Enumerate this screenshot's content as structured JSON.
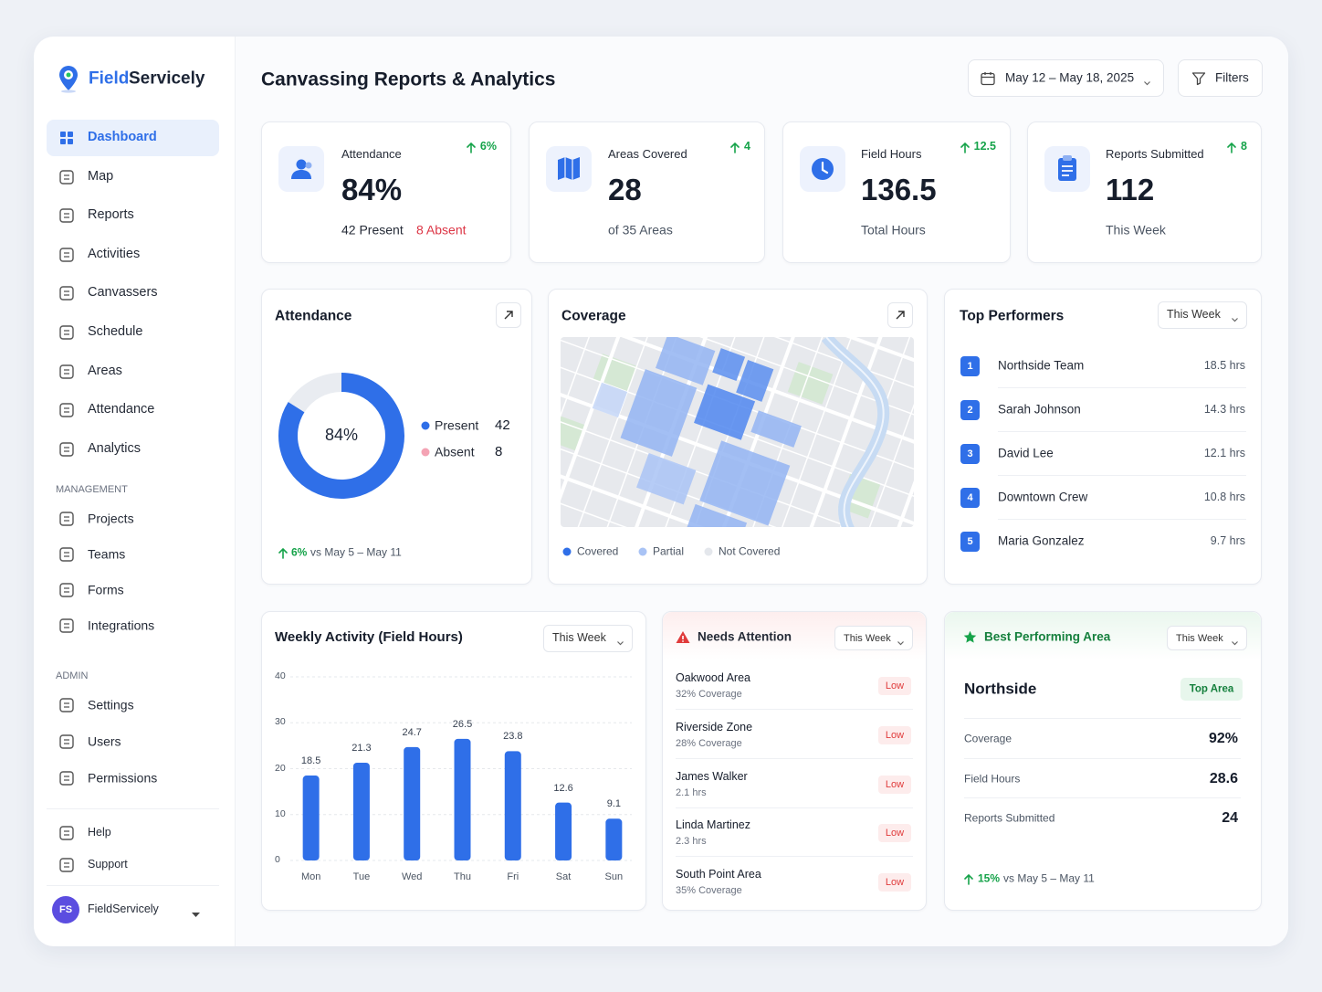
{
  "brand": {
    "first": "Field",
    "second": "Servicely"
  },
  "sidebar": {
    "main": [
      "Dashboard",
      "Map",
      "Reports",
      "Activities",
      "Canvassers",
      "Schedule",
      "Areas",
      "Attendance",
      "Analytics"
    ],
    "management_heading": "MANAGEMENT",
    "management": [
      "Projects",
      "Teams",
      "Forms",
      "Integrations"
    ],
    "admin_heading": "ADMIN",
    "admin": [
      "Settings",
      "Users",
      "Permissions"
    ],
    "support": [
      "Help",
      "Support"
    ],
    "user": {
      "initials": "FS",
      "name": "FieldServicely"
    }
  },
  "header": {
    "title": "Canvassing Reports & Analytics",
    "date_range": "May 12 – May 18, 2025",
    "filters": "Filters"
  },
  "kpis": [
    {
      "label": "Attendance",
      "change": "6%",
      "value": "84%",
      "detail": "42 Present",
      "detail_alert": "8 Absent"
    },
    {
      "label": "Areas Covered",
      "change": "4",
      "value": "28",
      "detail": "of 35 Areas"
    },
    {
      "label": "Field Hours",
      "change": "12.5",
      "value": "136.5",
      "detail": "Total Hours"
    },
    {
      "label": "Reports Submitted",
      "change": "8",
      "value": "112",
      "detail": "This Week"
    }
  ],
  "chart_data": [
    {
      "type": "donut",
      "title": "Attendance",
      "center_label": "84%",
      "categories": [
        "Present",
        "Absent"
      ],
      "values": [
        42,
        8
      ],
      "colors": [
        "#2f6fe8",
        "#e9ecf1"
      ],
      "legend_colors": [
        "#2f6fe8",
        "#f4a3b4"
      ],
      "change": "6%",
      "comparison": "vs May 5 – May 11"
    },
    {
      "type": "bar",
      "title": "Weekly Activity (Field Hours)",
      "filter": "This Week",
      "categories": [
        "Mon",
        "Tue",
        "Wed",
        "Thu",
        "Fri",
        "Sat",
        "Sun"
      ],
      "values": [
        18.5,
        21.3,
        24.7,
        26.5,
        23.8,
        12.6,
        9.1
      ],
      "color": "#2f6fe8",
      "ylim": [
        0,
        40
      ],
      "yticks": [
        0,
        10,
        20,
        30,
        40
      ],
      "grid": true
    }
  ],
  "coverage": {
    "title": "Coverage",
    "legend": [
      {
        "name": "Covered",
        "color": "#2f6fe8"
      },
      {
        "name": "Partial",
        "color": "#a9c3f5"
      },
      {
        "name": "Not Covered",
        "color": "#e4e7ec"
      }
    ]
  },
  "top_performers": {
    "title": "Top Performers",
    "filter": "This Week",
    "rows": [
      {
        "rank": "1",
        "name": "Northside Team",
        "hours": "18.5 hrs"
      },
      {
        "rank": "2",
        "name": "Sarah Johnson",
        "hours": "14.3 hrs"
      },
      {
        "rank": "3",
        "name": "David Lee",
        "hours": "12.1 hrs"
      },
      {
        "rank": "4",
        "name": "Downtown Crew",
        "hours": "10.8 hrs"
      },
      {
        "rank": "5",
        "name": "Maria Gonzalez",
        "hours": "9.7 hrs"
      }
    ]
  },
  "needs_attention": {
    "title": "Needs Attention",
    "filter": "This Week",
    "rows": [
      {
        "name": "Oakwood Area",
        "detail": "32% Coverage",
        "status": "Low"
      },
      {
        "name": "Riverside Zone",
        "detail": "28% Coverage",
        "status": "Low"
      },
      {
        "name": "James Walker",
        "detail": "2.1 hrs",
        "status": "Low"
      },
      {
        "name": "Linda Martinez",
        "detail": "2.3 hrs",
        "status": "Low"
      },
      {
        "name": "South Point Area",
        "detail": "35% Coverage",
        "status": "Low"
      }
    ]
  },
  "best_area": {
    "title": "Best Performing Area",
    "filter": "This Week",
    "name": "Northside",
    "badge": "Top Area",
    "rows": [
      {
        "label": "Coverage",
        "value": "92%"
      },
      {
        "label": "Field Hours",
        "value": "28.6"
      },
      {
        "label": "Reports Submitted",
        "value": "24"
      }
    ],
    "change": "15%",
    "comparison": "vs May 5 – May 11"
  }
}
